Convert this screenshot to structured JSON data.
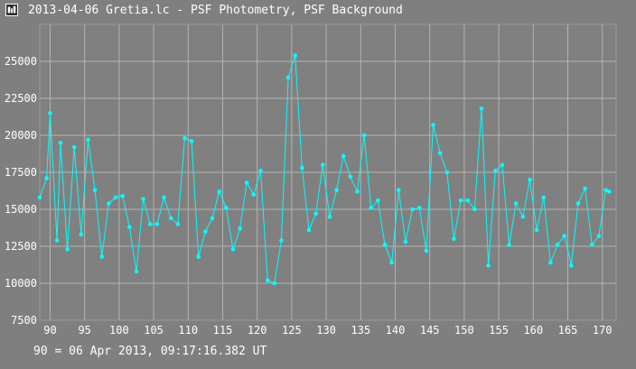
{
  "window": {
    "title": "2013-04-06 Gretia.lc - PSF Photometry, PSF Background",
    "icon": "app-icon"
  },
  "footer": {
    "note": "90 = 06 Apr 2013, 09:17:16.382 UT"
  },
  "colors": {
    "background": "#7f7f7f",
    "plot_area": "#808080",
    "grid": "#b4b4b4",
    "series": "#00ffff",
    "text": "#ffffff"
  },
  "chart_data": {
    "type": "line",
    "title": "",
    "xlabel": "",
    "ylabel": "",
    "xlim": [
      88.5,
      172
    ],
    "ylim": [
      7500,
      27500
    ],
    "x_ticks": [
      90,
      95,
      100,
      105,
      110,
      115,
      120,
      125,
      130,
      135,
      140,
      145,
      150,
      155,
      160,
      165,
      170
    ],
    "y_ticks": [
      7500,
      10000,
      12500,
      15000,
      17500,
      20000,
      22500,
      25000
    ],
    "grid": true,
    "series": [
      {
        "markers": "circle",
        "x": [
          88.5,
          89.5,
          90,
          91,
          91.5,
          92.5,
          93.5,
          94.5,
          95.5,
          96.5,
          97.5,
          98.5,
          99.5,
          100.5,
          101.5,
          102.5,
          103.5,
          104.5,
          105.5,
          106.5,
          107.5,
          108.5,
          109.5,
          110.5,
          111.5,
          112.5,
          113.5,
          114.5,
          115.5,
          116.5,
          117.5,
          118.5,
          119.5,
          120.5,
          121.5,
          122.5,
          123.5,
          124.5,
          125.5,
          126.5,
          127.5,
          128.5,
          129.5,
          130.5,
          131.5,
          132.5,
          133.5,
          134.5,
          135.5,
          136.5,
          137.5,
          138.5,
          139.5,
          140.5,
          141.5,
          142.5,
          143.5,
          144.5,
          145.5,
          146.5,
          147.5,
          148.5,
          149.5,
          150.5,
          151.5,
          152.5,
          153.5,
          154.5,
          155.5,
          156.5,
          157.5,
          158.5,
          159.5,
          160.5,
          161.5,
          162.5,
          163.5,
          164.5,
          165.5,
          166.5,
          167.5,
          168.5,
          169.5,
          170.5,
          171
        ],
        "y": [
          15800,
          17100,
          21500,
          12900,
          19500,
          12300,
          19200,
          13300,
          19700,
          16300,
          11800,
          15400,
          15800,
          15900,
          13800,
          10800,
          15700,
          14000,
          14000,
          15800,
          14400,
          14000,
          19800,
          19600,
          11800,
          13500,
          14400,
          16200,
          15100,
          12300,
          13700,
          16800,
          16000,
          17600,
          10200,
          10000,
          12900,
          23900,
          25400,
          17800,
          13600,
          14700,
          18000,
          14500,
          16300,
          18600,
          17200,
          16200,
          20000,
          15100,
          15600,
          12600,
          11400,
          16300,
          12800,
          15000,
          15100,
          12200,
          20700,
          18800,
          17500,
          13000,
          15600,
          15600,
          15000,
          21800,
          11200,
          17600,
          18000,
          12600,
          15400,
          14500,
          17000,
          13600,
          15800,
          11400,
          12600,
          13200,
          11200,
          15400,
          16400,
          12600,
          13200,
          16300,
          16200
        ]
      }
    ]
  }
}
